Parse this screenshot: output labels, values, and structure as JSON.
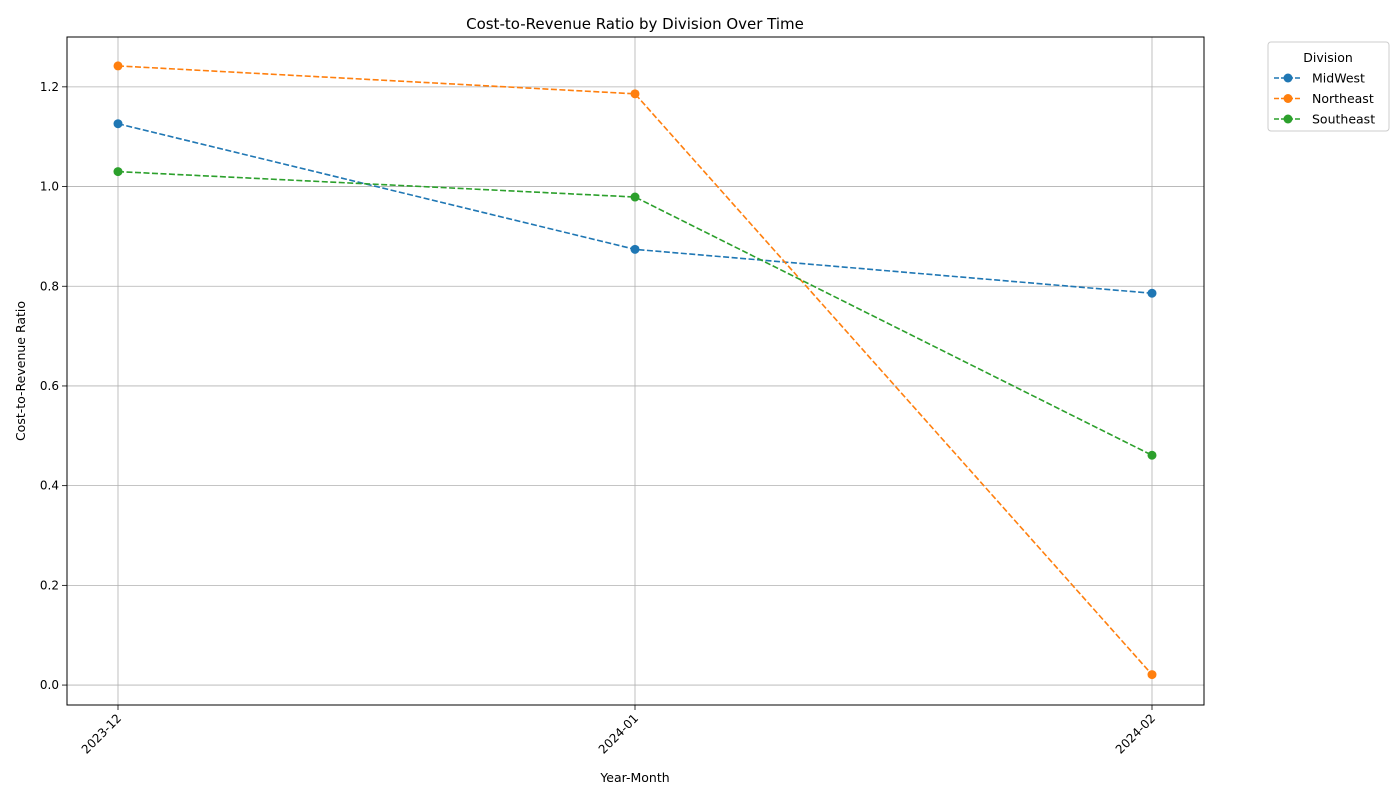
{
  "chart_data": {
    "type": "line",
    "title": "Cost-to-Revenue Ratio by Division Over Time",
    "xlabel": "Year-Month",
    "ylabel": "Cost-to-Revenue Ratio",
    "categories": [
      "2023-12",
      "2024-01",
      "2024-02"
    ],
    "ylim": [
      -0.04,
      1.3
    ],
    "yticks": [
      0.0,
      0.2,
      0.4,
      0.6,
      0.8,
      1.0,
      1.2
    ],
    "ytick_labels": [
      "0.0",
      "0.2",
      "0.4",
      "0.6",
      "0.8",
      "1.0",
      "1.2"
    ],
    "grid": true,
    "line_style": "dashed",
    "marker": "circle",
    "legend": {
      "title": "Division",
      "placement": "outside-top-right"
    },
    "series": [
      {
        "name": "MidWest",
        "color": "#1f77b4",
        "values": [
          1.126,
          0.874,
          0.786
        ]
      },
      {
        "name": "Northeast",
        "color": "#ff7f0e",
        "values": [
          1.242,
          1.186,
          0.021
        ]
      },
      {
        "name": "Southeast",
        "color": "#2ca02c",
        "values": [
          1.03,
          0.979,
          0.461
        ]
      }
    ]
  }
}
